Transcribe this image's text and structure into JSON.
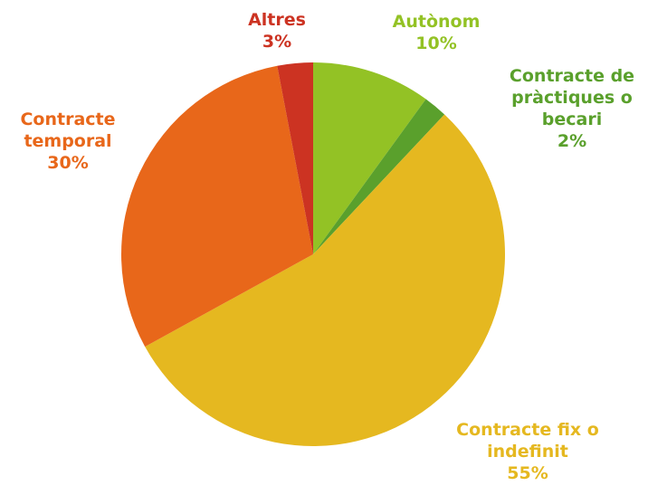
{
  "chart_data": {
    "type": "pie",
    "categories": [
      "Autònom",
      "Contracte de pràctiques o becari",
      "Contracte fix o indefinit",
      "Contracte temporal",
      "Altres"
    ],
    "values": [
      10,
      2,
      55,
      30,
      3
    ],
    "value_labels": [
      "10%",
      "2%",
      "55%",
      "30%",
      "3%"
    ],
    "colors": [
      "#93c225",
      "#5aa02c",
      "#e5b820",
      "#e8671a",
      "#cc3322"
    ]
  }
}
